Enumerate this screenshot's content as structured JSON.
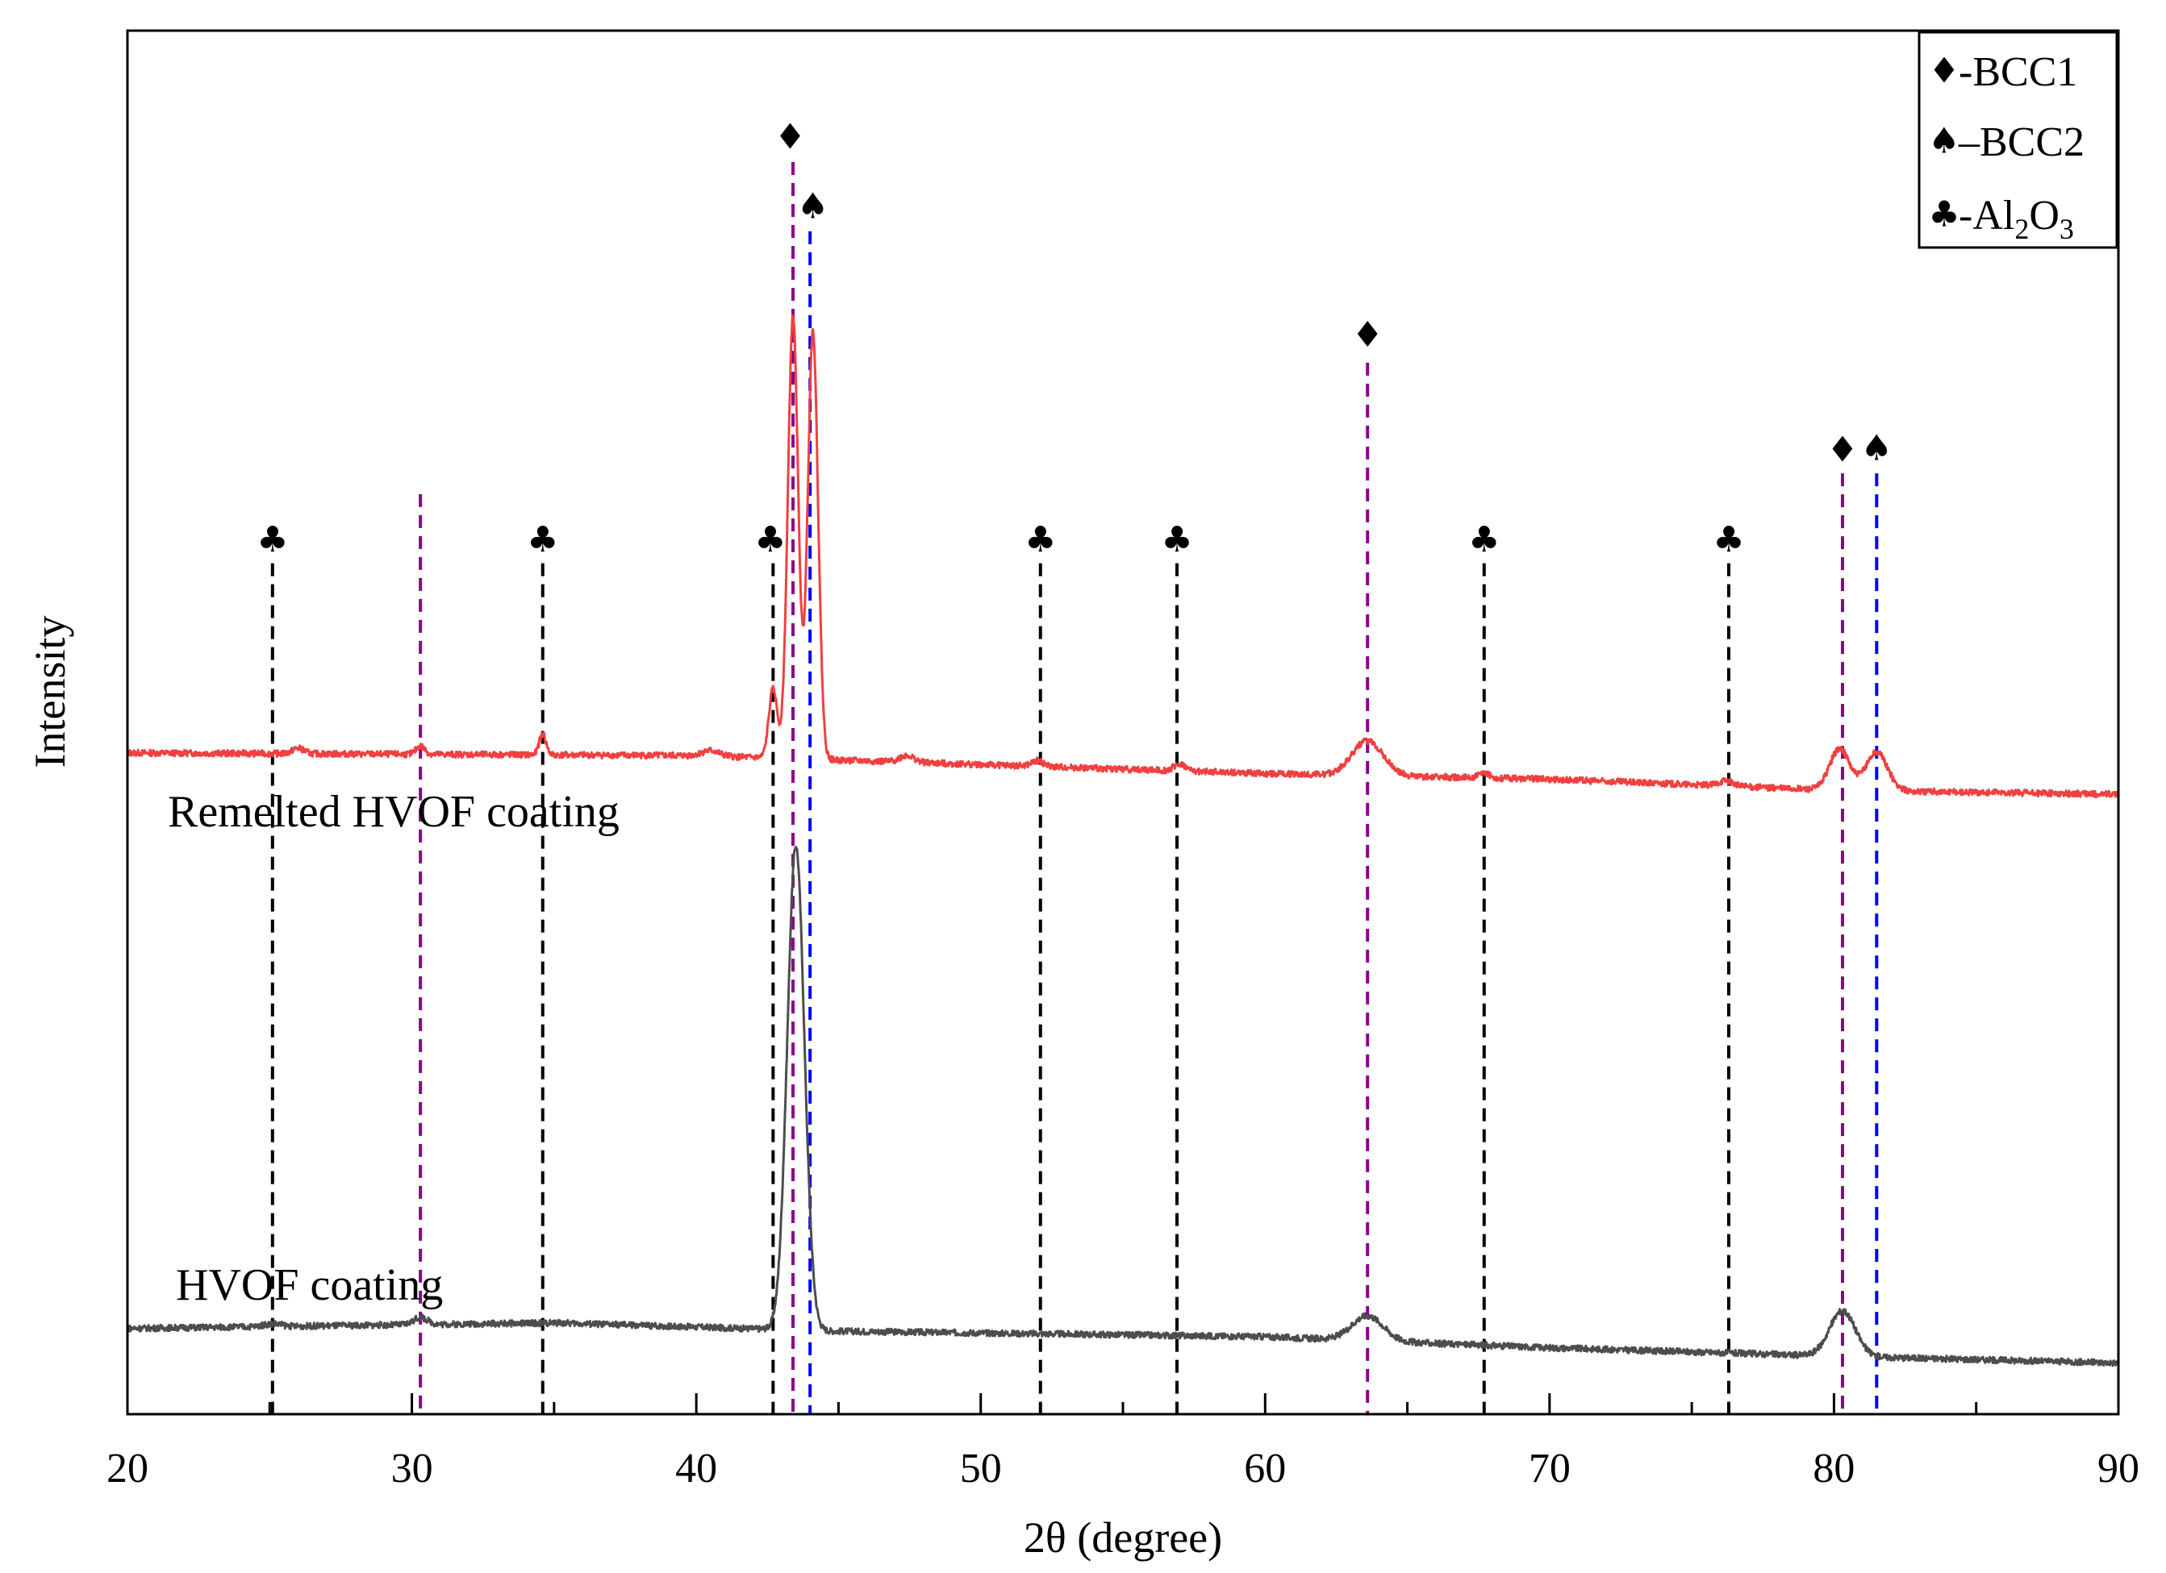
{
  "chart_data": {
    "type": "line",
    "title": "",
    "xlabel": "2θ (degree)",
    "ylabel": "Intensity",
    "xlim": [
      20,
      90
    ],
    "ylim": [
      0,
      100
    ],
    "grid": false,
    "legend_position": "top-right",
    "x_ticks": [
      "20",
      "30",
      "40",
      "50",
      "60",
      "70",
      "80",
      "90"
    ],
    "legend": [
      {
        "symbol": "♦",
        "text": "-BCC1"
      },
      {
        "symbol": "♠",
        "text": "–BCC2"
      },
      {
        "symbol": "♣",
        "text": "-Al",
        "sub1": "2",
        "mid": "O",
        "sub2": "3"
      }
    ],
    "series": [
      {
        "name": "Remelted HVOF coating",
        "label": "Remelted HVOF coating",
        "color": "#f04040",
        "baseline": [
          [
            20,
            47.8
          ],
          [
            40,
            47.6
          ],
          [
            60,
            46.3
          ],
          [
            70,
            45.9
          ],
          [
            80,
            45.1
          ],
          [
            90,
            44.8
          ]
        ],
        "peaks": [
          {
            "x": 26.0,
            "h": 0.4,
            "w": 0.2
          },
          {
            "x": 30.3,
            "h": 0.6,
            "w": 0.15
          },
          {
            "x": 34.6,
            "h": 1.5,
            "w": 0.12
          },
          {
            "x": 40.5,
            "h": 0.4,
            "w": 0.3
          },
          {
            "x": 42.7,
            "h": 5.0,
            "w": 0.15
          },
          {
            "x": 43.4,
            "h": 32.0,
            "w": 0.18
          },
          {
            "x": 44.1,
            "h": 31.0,
            "w": 0.18
          },
          {
            "x": 47.4,
            "h": 0.5,
            "w": 0.25
          },
          {
            "x": 52.0,
            "h": 0.4,
            "w": 0.2
          },
          {
            "x": 57.0,
            "h": 0.5,
            "w": 0.2
          },
          {
            "x": 63.6,
            "h": 2.5,
            "w": 0.55
          },
          {
            "x": 67.7,
            "h": 0.3,
            "w": 0.2
          },
          {
            "x": 76.2,
            "h": 0.4,
            "w": 0.25
          },
          {
            "x": 80.2,
            "h": 3.0,
            "w": 0.35
          },
          {
            "x": 81.5,
            "h": 2.8,
            "w": 0.38
          }
        ]
      },
      {
        "name": "HVOF coating",
        "label": "HVOF coating",
        "color": "#4d4d4d",
        "baseline": [
          [
            20,
            6.2
          ],
          [
            35,
            6.6
          ],
          [
            45,
            6.0
          ],
          [
            60,
            5.6
          ],
          [
            70,
            4.8
          ],
          [
            80,
            4.2
          ],
          [
            90,
            3.7
          ]
        ],
        "peaks": [
          {
            "x": 25.1,
            "h": 0.2,
            "w": 0.3
          },
          {
            "x": 30.3,
            "h": 0.5,
            "w": 0.25
          },
          {
            "x": 43.5,
            "h": 35.0,
            "w": 0.3
          },
          {
            "x": 63.6,
            "h": 1.8,
            "w": 0.55
          },
          {
            "x": 80.3,
            "h": 3.3,
            "w": 0.45
          }
        ]
      }
    ],
    "reference_lines": [
      {
        "x": 25.1,
        "phase": "Al2O3",
        "color": "#000000",
        "top": 61.5
      },
      {
        "x": 30.3,
        "phase": "unlabeled",
        "color": "#8b008b",
        "top": 66.5
      },
      {
        "x": 34.6,
        "phase": "Al2O3",
        "color": "#000000",
        "top": 61.5
      },
      {
        "x": 42.7,
        "phase": "Al2O3",
        "color": "#000000",
        "top": 61.5
      },
      {
        "x": 43.4,
        "phase": "BCC1",
        "color": "#8b008b",
        "top": 90.5
      },
      {
        "x": 44.0,
        "phase": "BCC2",
        "color": "#0000ff",
        "top": 85.5
      },
      {
        "x": 52.1,
        "phase": "Al2O3",
        "color": "#000000",
        "top": 61.5
      },
      {
        "x": 56.9,
        "phase": "Al2O3",
        "color": "#000000",
        "top": 61.5
      },
      {
        "x": 63.6,
        "phase": "BCC1",
        "color": "#8b008b",
        "top": 76.0
      },
      {
        "x": 67.7,
        "phase": "Al2O3",
        "color": "#000000",
        "top": 61.5
      },
      {
        "x": 76.3,
        "phase": "Al2O3",
        "color": "#000000",
        "top": 61.5
      },
      {
        "x": 80.3,
        "phase": "BCC1",
        "color": "#8b008b",
        "top": 68.0
      },
      {
        "x": 81.5,
        "phase": "BCC2",
        "color": "#0000ff",
        "top": 68.0
      }
    ],
    "markers": [
      {
        "x": 25.1,
        "y": 63.2,
        "symbol": "♣"
      },
      {
        "x": 34.6,
        "y": 63.2,
        "symbol": "♣"
      },
      {
        "x": 42.6,
        "y": 63.2,
        "symbol": "♣"
      },
      {
        "x": 52.1,
        "y": 63.2,
        "symbol": "♣"
      },
      {
        "x": 56.9,
        "y": 63.2,
        "symbol": "♣"
      },
      {
        "x": 67.7,
        "y": 63.2,
        "symbol": "♣"
      },
      {
        "x": 76.3,
        "y": 63.2,
        "symbol": "♣"
      },
      {
        "x": 43.3,
        "y": 92.3,
        "symbol": "♦"
      },
      {
        "x": 44.1,
        "y": 87.3,
        "symbol": "♠"
      },
      {
        "x": 63.6,
        "y": 78.0,
        "symbol": "♦"
      },
      {
        "x": 80.3,
        "y": 69.7,
        "symbol": "♦"
      },
      {
        "x": 81.5,
        "y": 69.8,
        "symbol": "♠"
      }
    ]
  }
}
